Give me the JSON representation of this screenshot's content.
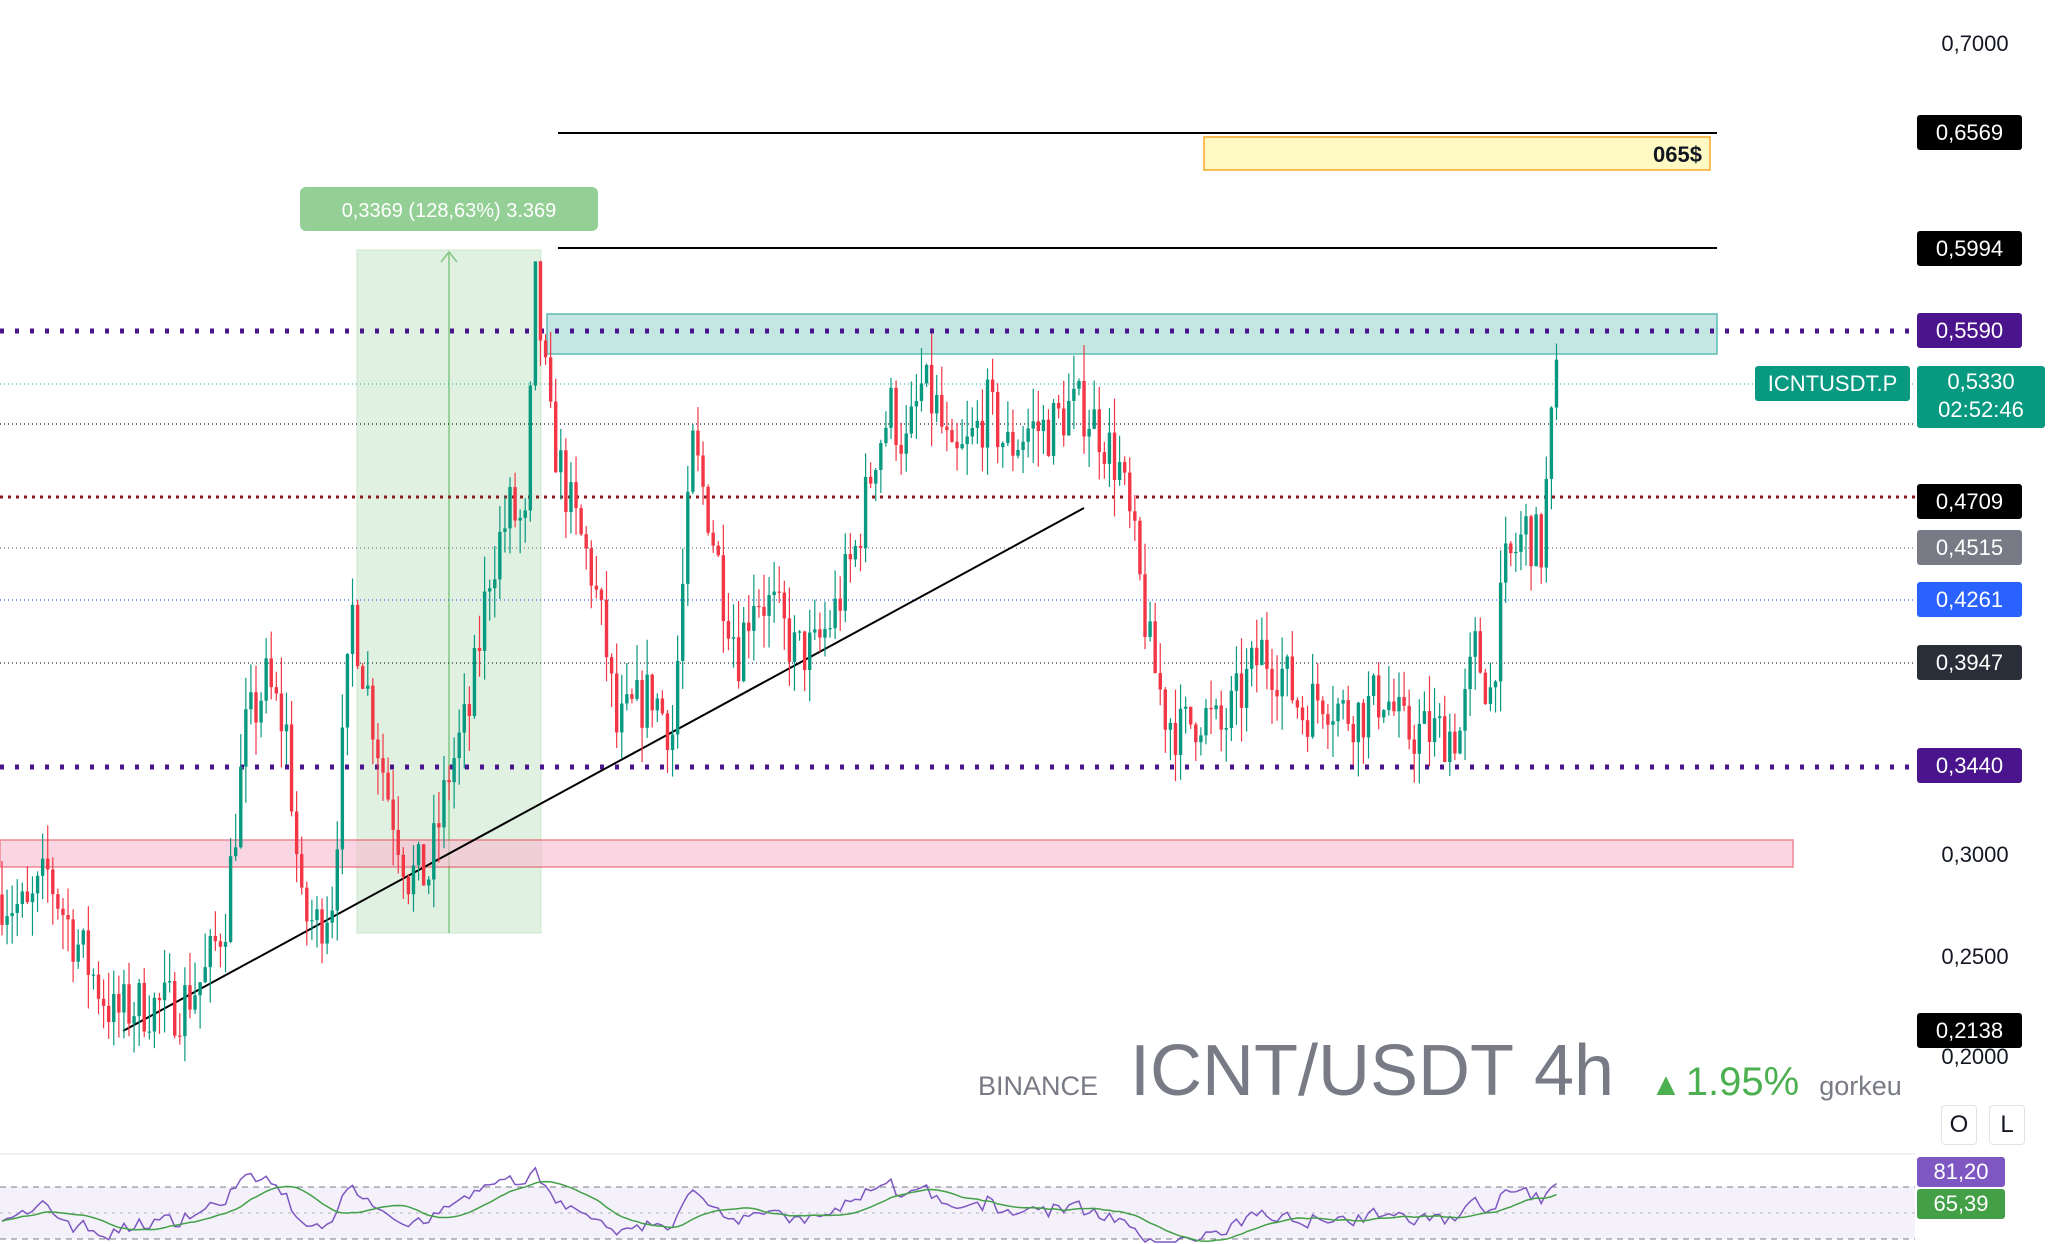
{
  "chart_data": {
    "type": "candlestick",
    "exchange": "BINANCE",
    "symbol": "ICNT/USDT",
    "interval": "4h",
    "change": "1.95%",
    "author": "gorkeu",
    "ticker_label": "ICNTUSDT.P",
    "last_price": "0,5330",
    "countdown": "02:52:46",
    "y_ticks": [
      "0,7000",
      "0,3000",
      "0,2500",
      "0,2000"
    ],
    "price_labels": [
      {
        "text": "0,6569",
        "color": "#000000"
      },
      {
        "text": "0,5994",
        "color": "#000000"
      },
      {
        "text": "0,5590",
        "color": "#4a148c"
      },
      {
        "text": "0,4709",
        "color": "#000000"
      },
      {
        "text": "0,4515",
        "color": "#787b86"
      },
      {
        "text": "0,4261",
        "color": "#2962ff"
      },
      {
        "text": "0,3947",
        "color": "#2a2e39"
      },
      {
        "text": "0,3440",
        "color": "#4a148c"
      },
      {
        "text": "0,2138",
        "color": "#000000"
      }
    ],
    "target_box_label": "065$",
    "measure_label": "0,3369 (128,63%) 3.369",
    "rsi": {
      "value": "81,20",
      "ma": "65,39"
    },
    "ylim": [
      0.18,
      0.72
    ],
    "anchors": [
      [
        0,
        0.28
      ],
      [
        5,
        0.27
      ],
      [
        9,
        0.29
      ],
      [
        14,
        0.26
      ],
      [
        22,
        0.22
      ],
      [
        26,
        0.225
      ],
      [
        35,
        0.225
      ],
      [
        40,
        0.24
      ],
      [
        44,
        0.27
      ],
      [
        48,
        0.36
      ],
      [
        52,
        0.385
      ],
      [
        56,
        0.36
      ],
      [
        59,
        0.27
      ],
      [
        62,
        0.265
      ],
      [
        65,
        0.28
      ],
      [
        69,
        0.42
      ],
      [
        72,
        0.38
      ],
      [
        76,
        0.33
      ],
      [
        80,
        0.29
      ],
      [
        84,
        0.29
      ],
      [
        88,
        0.34
      ],
      [
        92,
        0.37
      ],
      [
        96,
        0.44
      ],
      [
        100,
        0.47
      ],
      [
        103,
        0.46
      ],
      [
        105,
        0.58
      ],
      [
        108,
        0.51
      ],
      [
        112,
        0.47
      ],
      [
        116,
        0.44
      ],
      [
        119,
        0.4
      ],
      [
        121,
        0.36
      ],
      [
        124,
        0.37
      ],
      [
        128,
        0.38
      ],
      [
        132,
        0.36
      ],
      [
        136,
        0.5
      ],
      [
        139,
        0.47
      ],
      [
        142,
        0.43
      ],
      [
        145,
        0.4
      ],
      [
        148,
        0.43
      ],
      [
        152,
        0.42
      ],
      [
        156,
        0.4
      ],
      [
        160,
        0.4
      ],
      [
        164,
        0.42
      ],
      [
        168,
        0.45
      ],
      [
        172,
        0.5
      ],
      [
        175,
        0.52
      ],
      [
        178,
        0.5
      ],
      [
        181,
        0.53
      ],
      [
        184,
        0.52
      ],
      [
        187,
        0.49
      ],
      [
        190,
        0.5
      ],
      [
        194,
        0.52
      ],
      [
        198,
        0.5
      ],
      [
        202,
        0.51
      ],
      [
        206,
        0.51
      ],
      [
        210,
        0.52
      ],
      [
        213,
        0.52
      ],
      [
        216,
        0.51
      ],
      [
        220,
        0.49
      ],
      [
        223,
        0.45
      ],
      [
        226,
        0.4
      ],
      [
        229,
        0.37
      ],
      [
        232,
        0.36
      ],
      [
        236,
        0.37
      ],
      [
        240,
        0.36
      ],
      [
        244,
        0.38
      ],
      [
        248,
        0.4
      ],
      [
        252,
        0.39
      ],
      [
        256,
        0.37
      ],
      [
        260,
        0.38
      ],
      [
        264,
        0.37
      ],
      [
        268,
        0.37
      ],
      [
        272,
        0.38
      ],
      [
        276,
        0.36
      ],
      [
        280,
        0.36
      ],
      [
        284,
        0.36
      ],
      [
        287,
        0.36
      ],
      [
        290,
        0.4
      ],
      [
        293,
        0.38
      ],
      [
        296,
        0.44
      ],
      [
        300,
        0.46
      ],
      [
        303,
        0.45
      ],
      [
        305,
        0.51
      ],
      [
        306,
        0.533
      ]
    ]
  }
}
